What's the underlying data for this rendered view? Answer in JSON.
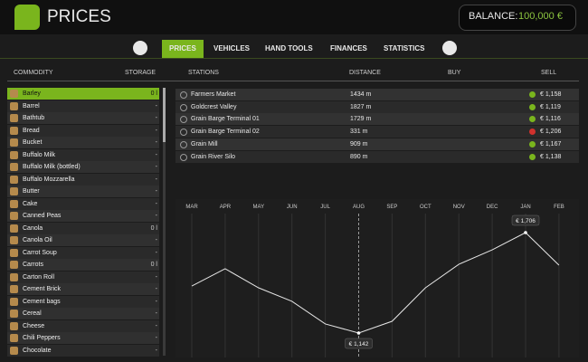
{
  "header": {
    "title": "PRICES",
    "balance_label": "BALANCE:",
    "balance_value": "100,000 €"
  },
  "tabs": [
    "PRICES",
    "VEHICLES",
    "HAND TOOLS",
    "FINANCES",
    "STATISTICS"
  ],
  "columns": {
    "commodity": "COMMODITY",
    "storage": "STORAGE",
    "stations": "STATIONS",
    "distance": "DISTANCE",
    "buy": "BUY",
    "sell": "SELL"
  },
  "commodities": [
    {
      "name": "Barley",
      "storage": "0 l"
    },
    {
      "name": "Barrel",
      "storage": "-"
    },
    {
      "name": "Bathtub",
      "storage": "-"
    },
    {
      "name": "Bread",
      "storage": "-"
    },
    {
      "name": "Bucket",
      "storage": "-"
    },
    {
      "name": "Buffalo Milk",
      "storage": "-"
    },
    {
      "name": "Buffalo Milk (bottled)",
      "storage": "-"
    },
    {
      "name": "Buffalo Mozzarella",
      "storage": "-"
    },
    {
      "name": "Butter",
      "storage": "-"
    },
    {
      "name": "Cake",
      "storage": "-"
    },
    {
      "name": "Canned Peas",
      "storage": "-"
    },
    {
      "name": "Canola",
      "storage": "0 l"
    },
    {
      "name": "Canola Oil",
      "storage": "-"
    },
    {
      "name": "Carrot Soup",
      "storage": "-"
    },
    {
      "name": "Carrots",
      "storage": "0 l"
    },
    {
      "name": "Carton Roll",
      "storage": "-"
    },
    {
      "name": "Cement Brick",
      "storage": "-"
    },
    {
      "name": "Cement bags",
      "storage": "-"
    },
    {
      "name": "Cereal",
      "storage": "-"
    },
    {
      "name": "Cheese",
      "storage": "-"
    },
    {
      "name": "Chili Peppers",
      "storage": "-"
    },
    {
      "name": "Chocolate",
      "storage": "-"
    }
  ],
  "stations": [
    {
      "name": "Farmers Market",
      "distance": "1434 m",
      "sell": "€ 1,158",
      "icon_color": "#7ab51d"
    },
    {
      "name": "Goldcrest Valley",
      "distance": "1827 m",
      "sell": "€ 1,119",
      "icon_color": "#7ab51d"
    },
    {
      "name": "Grain Barge Terminal 01",
      "distance": "1729 m",
      "sell": "€ 1,116",
      "icon_color": "#7ab51d"
    },
    {
      "name": "Grain Barge Terminal 02",
      "distance": "331 m",
      "sell": "€ 1,206",
      "icon_color": "#d0312d"
    },
    {
      "name": "Grain Mill",
      "distance": "909 m",
      "sell": "€ 1,167",
      "icon_color": "#7ab51d"
    },
    {
      "name": "Grain River Silo",
      "distance": "890 m",
      "sell": "€ 1,138",
      "icon_color": "#7ab51d"
    }
  ],
  "price_chart": {
    "type": "line",
    "categories": [
      "MAR",
      "APR",
      "MAY",
      "JUN",
      "JUL",
      "AUG",
      "SEP",
      "OCT",
      "NOV",
      "DEC",
      "JAN",
      "FEB"
    ],
    "values": [
      1406,
      1503,
      1396,
      1320,
      1193,
      1142,
      1208,
      1396,
      1528,
      1609,
      1706,
      1523
    ],
    "value_labels": [
      null,
      null,
      null,
      null,
      null,
      "€ 1,142",
      null,
      null,
      null,
      null,
      "€ 1,706",
      null
    ],
    "color": "#e6e6e6",
    "highlight": "AUG"
  }
}
